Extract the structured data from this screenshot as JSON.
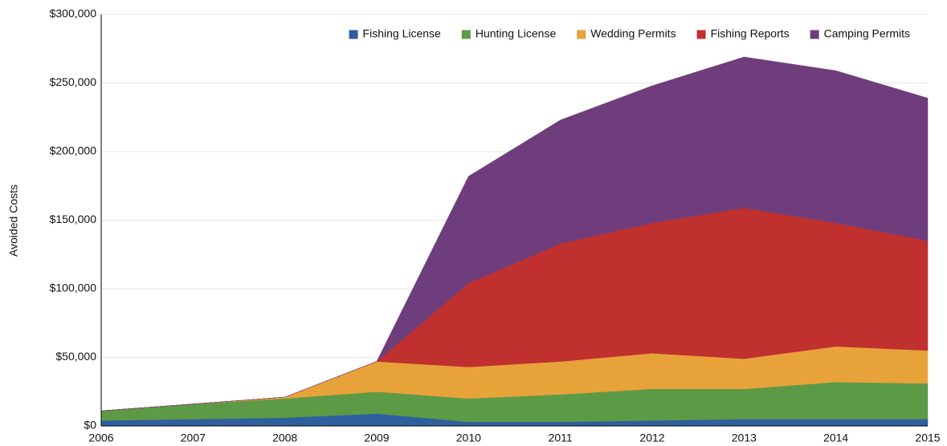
{
  "chart_data": {
    "type": "stacked_area",
    "y_label": "Avoided Costs",
    "categories": [
      "2006",
      "2007",
      "2008",
      "2009",
      "2010",
      "2011",
      "2012",
      "2013",
      "2014",
      "2015"
    ],
    "series": [
      {
        "name": "Fishing License",
        "color": "#2e5f9e",
        "values": [
          4000,
          5000,
          6000,
          9000,
          3000,
          3000,
          4000,
          5000,
          5000,
          5000
        ]
      },
      {
        "name": "Hunting License",
        "color": "#5d9a45",
        "values": [
          7000,
          11000,
          14000,
          16000,
          17000,
          20000,
          23000,
          22000,
          27000,
          26000
        ]
      },
      {
        "name": "Wedding Permits",
        "color": "#e8a23a",
        "values": [
          0,
          0,
          1000,
          22000,
          23000,
          24000,
          26000,
          22000,
          26000,
          24000
        ]
      },
      {
        "name": "Fishing Reports",
        "color": "#c0302f",
        "values": [
          0,
          0,
          0,
          0,
          61000,
          86000,
          95000,
          110000,
          90000,
          80000
        ]
      },
      {
        "name": "Camping Permits",
        "color": "#6f3d7c",
        "values": [
          0,
          0,
          0,
          0,
          78000,
          90000,
          100000,
          110000,
          111000,
          104000
        ]
      }
    ],
    "ylim": [
      0,
      300000
    ],
    "yticks": [
      {
        "value": 0,
        "label": "$0"
      },
      {
        "value": 50000,
        "label": "$50,000"
      },
      {
        "value": 100000,
        "label": "$100,000"
      },
      {
        "value": 150000,
        "label": "$150,000"
      },
      {
        "value": 200000,
        "label": "$200,000"
      },
      {
        "value": 250000,
        "label": "$250,000"
      },
      {
        "value": 300000,
        "label": "$300,000"
      }
    ],
    "grid": true,
    "legend": "top-right"
  }
}
